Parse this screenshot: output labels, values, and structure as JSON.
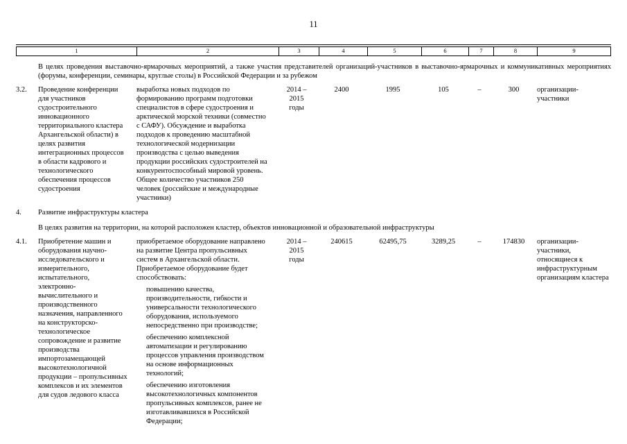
{
  "colors": {
    "text": "#000000",
    "background": "#ffffff",
    "border": "#000000"
  },
  "page_number": "11",
  "table_header": {
    "columns": [
      "1",
      "2",
      "3",
      "4",
      "5",
      "6",
      "7",
      "8",
      "9"
    ]
  },
  "notes": {
    "exhibitions": "В целях проведения выставочно-ярмарочных мероприятий, а также участия представителей организаций-участников в выставочно-ярмарочных и коммуникативных мероприятиях (форумы, конференции, семинары, круглые столы) в Российской Федерации и за рубежом",
    "infrastructure": "В целях развития на территории, на которой расположен кластер, объектов инновационной и образовательной инфраструктуры"
  },
  "section4": {
    "num": "4.",
    "title": "Развитие инфраструктуры кластера"
  },
  "rows": {
    "r32": {
      "num": "3.2.",
      "activity": "Проведение конференции для участников судостроительного инновационного территориального кластера Архангельской области) в целях развития интеграционных процессов в области кадрового и технологического обеспечения процессов судостроения",
      "result": "выработка новых подходов по формированию программ подготовки специалистов в сфере судостроения и арктической морской техники (совместно с САФУ). Обсуждение и выработка подходов к проведению масштабной технологической модернизации производства с целью выведения продукции российских судостроителей на конкурентоспособный мировой уровень. Общее количество участников 250 человек (российские и международные участники)",
      "period_l1": "2014 – 2015",
      "period_l2": "годы",
      "c4": "2400",
      "c5": "1995",
      "c6": "105",
      "c7": "–",
      "c8": "300",
      "c9": "организации-участники"
    },
    "r41": {
      "num": "4.1.",
      "activity": "Приобретение машин и оборудования  научно-исследовательского и измерительного, испытательного, электронно-вычислительного и производственного назначения, направленного на конструкторско-технологическое сопровождение и развитие производства импортозамещающей высокотехнологичной продукции – пропульсивных комплексов и их элементов для судов ледового класса",
      "result_intro": "приобретаемое оборудование направлено на развитие Центра пропульсивных систем в Архангельской области. Приобретаемое оборудование будет способствовать:",
      "result_items": [
        "повышению качества, производительности, гибкости и универсальности технологического оборудования, используемого непосредственно при производстве;",
        "обеспечению комплексной автоматизации и регулированию процессов управления производством на основе информационных технологий;",
        "обеспечению изготовления высокотехнологичных компонентов пропульсивных комплексов, ранее не изготавливавшихся в Российской Федерации;"
      ],
      "period_l1": "2014 – 2015",
      "period_l2": "годы",
      "c4": "240615",
      "c5": "62495,75",
      "c6": "3289,25",
      "c7": "–",
      "c8": "174830",
      "c9": "организации-участники, относящиеся к инфраструктурным организациям кластера"
    }
  }
}
